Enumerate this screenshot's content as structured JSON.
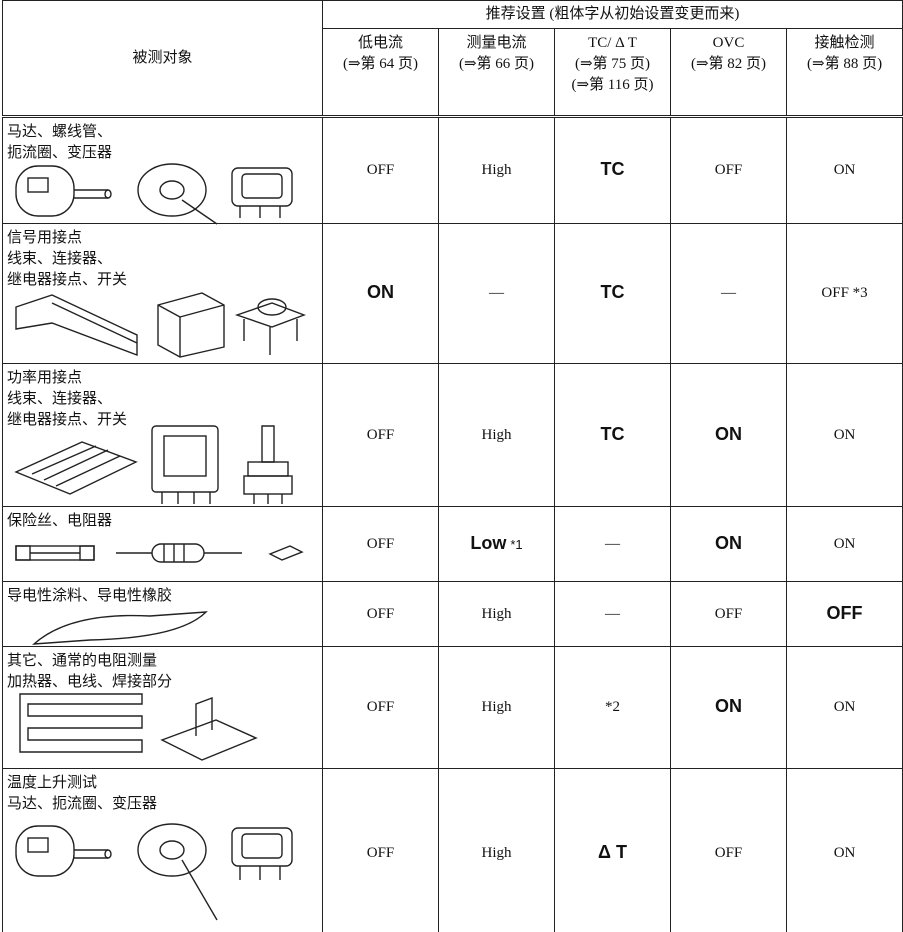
{
  "header": {
    "object": "被测对象",
    "group": "推荐设置 (粗体字从初始设置变更而来)",
    "columns": [
      {
        "lines": [
          "低电流",
          "(⇒第 64 页)"
        ]
      },
      {
        "lines": [
          "测量电流",
          "(⇒第 66 页)"
        ]
      },
      {
        "lines": [
          "TC/ Δ T",
          "(⇒第 75 页)",
          "(⇒第 116 页)"
        ]
      },
      {
        "lines": [
          "OVC",
          "(⇒第 82 页)"
        ]
      },
      {
        "lines": [
          "接触检测",
          "(⇒第 88 页)"
        ]
      }
    ]
  },
  "rows": [
    {
      "object": [
        "马达、螺线管、",
        "扼流圈、变压器"
      ],
      "cells": [
        {
          "text": "OFF"
        },
        {
          "text": "High"
        },
        {
          "text": "TC",
          "bold": true
        },
        {
          "text": "OFF"
        },
        {
          "text": "ON"
        }
      ]
    },
    {
      "object": [
        "信号用接点",
        "线束、连接器、",
        "继电器接点、开关"
      ],
      "cells": [
        {
          "text": "ON",
          "bold": true
        },
        {
          "text": "—"
        },
        {
          "text": "TC",
          "bold": true
        },
        {
          "text": "—"
        },
        {
          "text": "OFF *3"
        }
      ]
    },
    {
      "object": [
        "功率用接点",
        "线束、连接器、",
        "继电器接点、开关"
      ],
      "cells": [
        {
          "text": "OFF"
        },
        {
          "text": "High"
        },
        {
          "text": "TC",
          "bold": true
        },
        {
          "text": "ON",
          "bold": true
        },
        {
          "text": "ON"
        }
      ]
    },
    {
      "object": [
        "保险丝、电阻器"
      ],
      "cells": [
        {
          "text": "OFF"
        },
        {
          "text": "Low",
          "bold": true,
          "note": "*1"
        },
        {
          "text": "—"
        },
        {
          "text": "ON",
          "bold": true
        },
        {
          "text": "ON"
        }
      ]
    },
    {
      "object": [
        "导电性涂料、导电性橡胶"
      ],
      "cells": [
        {
          "text": "OFF"
        },
        {
          "text": "High"
        },
        {
          "text": "—"
        },
        {
          "text": "OFF"
        },
        {
          "text": "OFF",
          "bold": true
        }
      ]
    },
    {
      "object": [
        "其它、通常的电阻测量",
        "加热器、电线、焊接部分"
      ],
      "cells": [
        {
          "text": "OFF"
        },
        {
          "text": "High"
        },
        {
          "text": "*2"
        },
        {
          "text": "ON",
          "bold": true
        },
        {
          "text": "ON"
        }
      ]
    },
    {
      "object": [
        "温度上升测试",
        "马达、扼流圈、变压器"
      ],
      "cells": [
        {
          "text": "OFF"
        },
        {
          "text": "High"
        },
        {
          "text": "Δ T",
          "bold": true
        },
        {
          "text": "OFF"
        },
        {
          "text": "ON"
        }
      ]
    }
  ]
}
